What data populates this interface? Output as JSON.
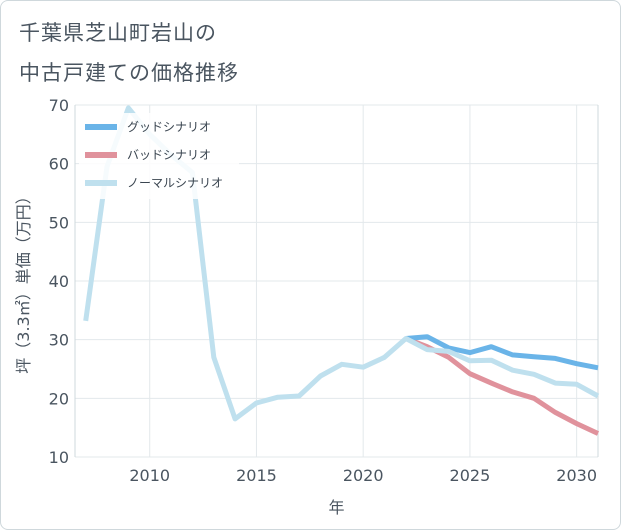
{
  "title": {
    "line1": "千葉県芝山町岩山の",
    "line2": "中古戸建ての価格推移"
  },
  "chart_data": {
    "type": "line",
    "title": "千葉県芝山町岩山の中古戸建ての価格推移",
    "xlabel": "年",
    "ylabel": "坪（3.3㎡）単価（万円）",
    "xlim": [
      2006.5,
      2031
    ],
    "ylim": [
      10,
      70
    ],
    "xticks": [
      2010,
      2015,
      2020,
      2025,
      2030
    ],
    "yticks": [
      10,
      20,
      30,
      40,
      50,
      60,
      70
    ],
    "grid": true,
    "legend_position": "top-left",
    "series": [
      {
        "name": "グッドシナリオ",
        "color": "#6ab4e8",
        "x": [
          2022,
          2023,
          2024,
          2025,
          2026,
          2027,
          2028,
          2029,
          2030,
          2031
        ],
        "y": [
          30.2,
          30.5,
          28.6,
          27.8,
          28.8,
          27.4,
          27.1,
          26.8,
          25.9,
          25.2
        ]
      },
      {
        "name": "バッドシナリオ",
        "color": "#e0929c",
        "x": [
          2022,
          2023,
          2024,
          2025,
          2026,
          2027,
          2028,
          2029,
          2030,
          2031
        ],
        "y": [
          30.2,
          28.8,
          27.0,
          24.2,
          22.6,
          21.1,
          20.0,
          17.6,
          15.7,
          14.0
        ]
      },
      {
        "name": "ノーマルシナリオ",
        "color": "#bfe0ee",
        "x": [
          2007,
          2008,
          2009,
          2010,
          2011,
          2012,
          2013,
          2014,
          2015,
          2016,
          2017,
          2018,
          2019,
          2020,
          2021,
          2022,
          2023,
          2024,
          2025,
          2026,
          2027,
          2028,
          2029,
          2030,
          2031
        ],
        "y": [
          33.2,
          59.5,
          69.5,
          65.0,
          61.5,
          58.5,
          27.0,
          16.5,
          19.2,
          20.2,
          20.4,
          23.8,
          25.8,
          25.3,
          27.0,
          30.2,
          28.3,
          28.0,
          26.4,
          26.5,
          24.8,
          24.1,
          22.6,
          22.4,
          20.4
        ]
      }
    ]
  }
}
